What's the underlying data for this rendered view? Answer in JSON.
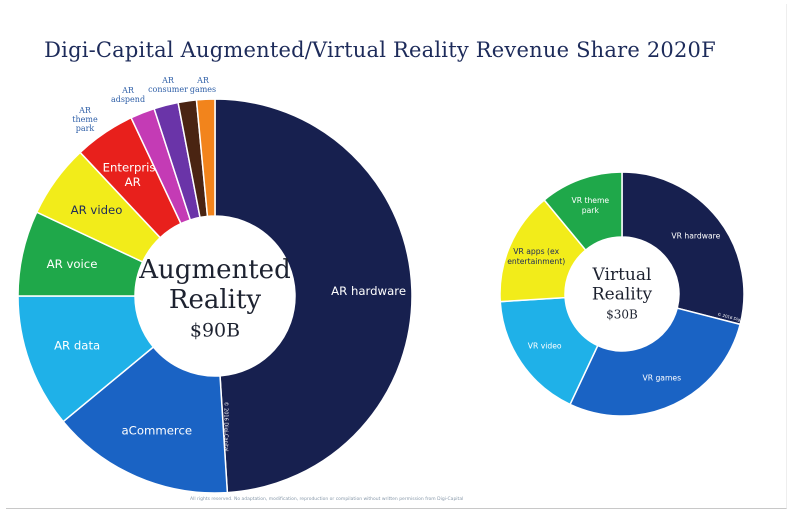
{
  "chart_data": [
    {
      "type": "pie",
      "donut": true,
      "title": "Digi-Capital Augmented/Virtual Reality Revenue Share 2020F",
      "center_label": [
        "Augmented",
        "Reality",
        "$90B"
      ],
      "copyright": "© 2016 Digi-Capital",
      "slices": [
        {
          "label": "AR hardware",
          "value": 49,
          "color": "#17204f"
        },
        {
          "label": "aCommerce",
          "value": 15,
          "color": "#1a63c4"
        },
        {
          "label": "AR data",
          "value": 11,
          "color": "#1fb1e8"
        },
        {
          "label": "AR voice",
          "value": 7,
          "color": "#1fa84a"
        },
        {
          "label": "AR video",
          "value": 6,
          "color": "#f2ec1a"
        },
        {
          "label": "Enterprise AR",
          "value": 5,
          "color": "#e8201c"
        },
        {
          "label": "AR theme park",
          "value": 2,
          "color": "#c43bb5"
        },
        {
          "label": "AR adspend",
          "value": 2,
          "color": "#6a34a8"
        },
        {
          "label": "AR consumer",
          "value": 1.5,
          "color": "#4a2412"
        },
        {
          "label": "AR games",
          "value": 1.5,
          "color": "#f2841c"
        }
      ]
    },
    {
      "type": "pie",
      "donut": true,
      "center_label": [
        "Virtual",
        "Reality",
        "$30B"
      ],
      "copyright": "© 2016 Digi-Capital",
      "slices": [
        {
          "label": "VR hardware",
          "value": 29,
          "color": "#17204f"
        },
        {
          "label": "VR games",
          "value": 28,
          "color": "#1a63c4"
        },
        {
          "label": "VR video",
          "value": 17,
          "color": "#1fb1e8"
        },
        {
          "label": "VR apps (ex entertainment)",
          "value": 15,
          "color": "#f2ec1a"
        },
        {
          "label": "VR theme park",
          "value": 11,
          "color": "#1fa84a"
        }
      ]
    }
  ],
  "footer": "All rights reserved. No adaptation, modification, reproduction or compilation without written permission from Digi-Capital"
}
